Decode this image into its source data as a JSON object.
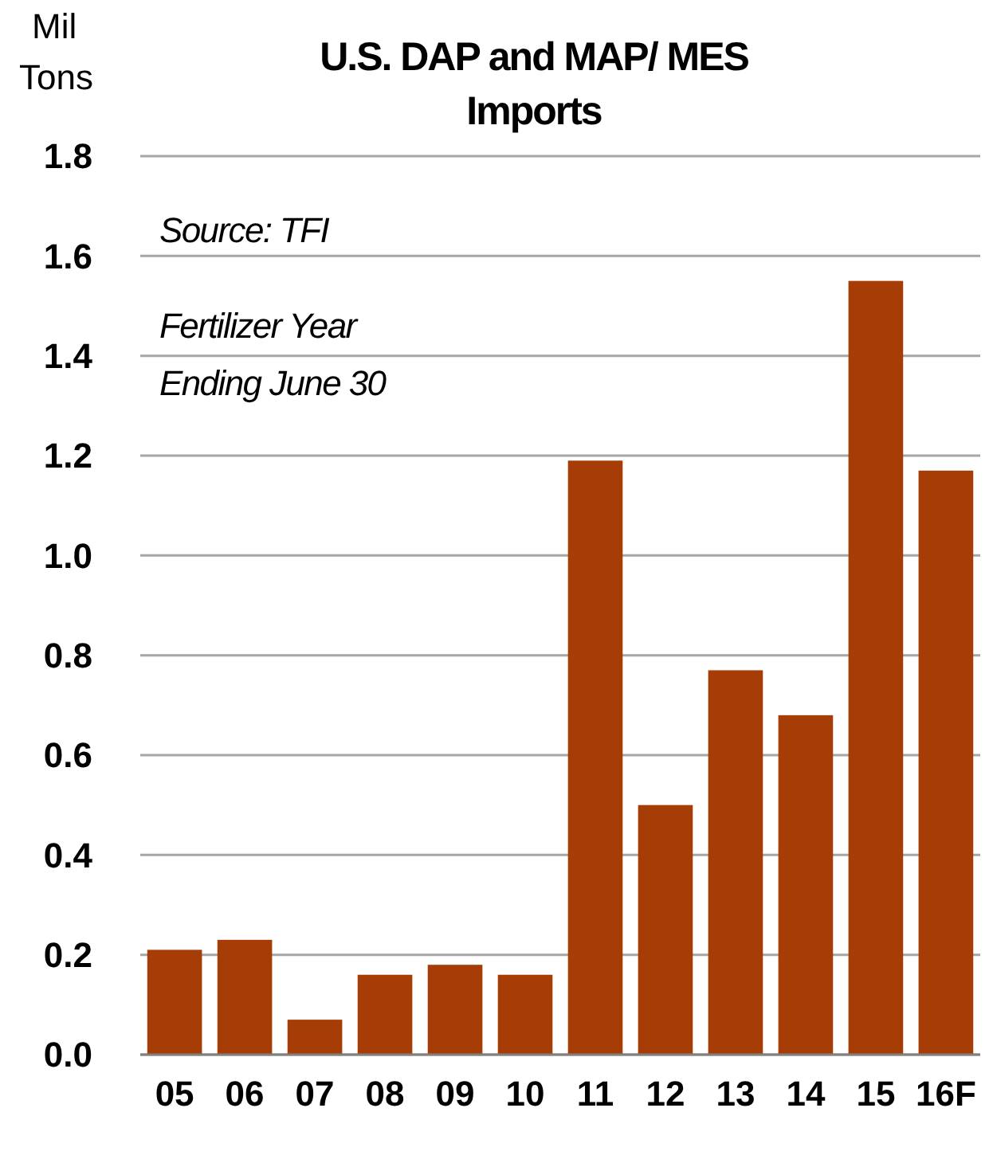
{
  "chart_data": {
    "type": "bar",
    "title": "U.S. DAP and MAP/ MES Imports",
    "ylabel": "Mil Tons",
    "annotations": [
      "Source: TFI",
      "Fertilizer  Year Ending June 30"
    ],
    "categories": [
      "05",
      "06",
      "07",
      "08",
      "09",
      "10",
      "11",
      "12",
      "13",
      "14",
      "15",
      "16F"
    ],
    "values": [
      0.21,
      0.23,
      0.07,
      0.16,
      0.18,
      0.16,
      1.19,
      0.5,
      0.77,
      0.68,
      1.55,
      1.17
    ],
    "color": "#a63c06",
    "ylim": [
      0,
      1.8
    ],
    "yticks": [
      {
        "value": 0,
        "label": "0.0"
      },
      {
        "value": 0.2,
        "label": "0.2"
      },
      {
        "value": 0.4,
        "label": "0.4"
      },
      {
        "value": 0.6,
        "label": "0.6"
      },
      {
        "value": 0.8,
        "label": "0.8"
      },
      {
        "value": 1,
        "label": "1.0"
      },
      {
        "value": 1.2,
        "label": "1.2"
      },
      {
        "value": 1.4,
        "label": "1.4"
      },
      {
        "value": 1.6,
        "label": "1.6"
      },
      {
        "value": 1.8,
        "label": "1.8"
      }
    ],
    "grid": "y"
  }
}
